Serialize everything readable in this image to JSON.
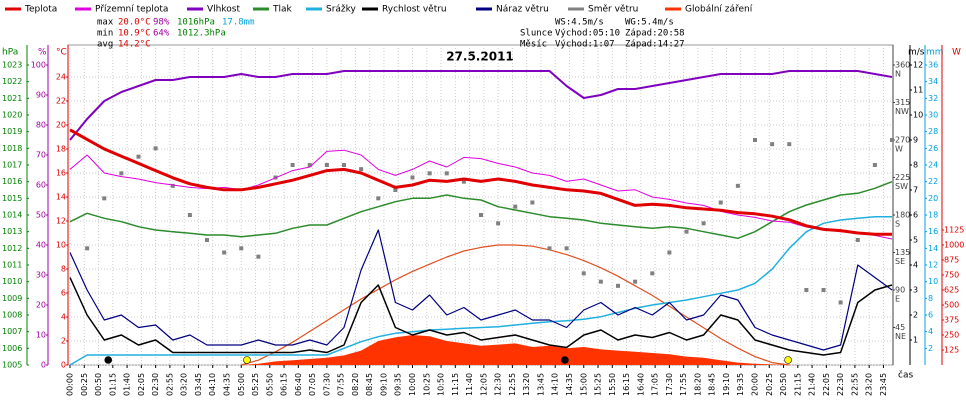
{
  "chart_data": {
    "type": "line",
    "title": "27.5.2011",
    "xlim": [
      0,
      1440
    ],
    "xticks": [
      {
        "value": 0,
        "label": "00:00"
      },
      {
        "value": 25,
        "label": "00:25"
      },
      {
        "value": 50,
        "label": "00:50"
      },
      {
        "value": 75,
        "label": "01:15"
      },
      {
        "value": 100,
        "label": "01:40"
      },
      {
        "value": 125,
        "label": "02:05"
      },
      {
        "value": 150,
        "label": "02:30"
      },
      {
        "value": 175,
        "label": "02:55"
      },
      {
        "value": 200,
        "label": "03:20"
      },
      {
        "value": 225,
        "label": "03:45"
      },
      {
        "value": 250,
        "label": "04:10"
      },
      {
        "value": 275,
        "label": "04:35"
      },
      {
        "value": 300,
        "label": "05:00"
      },
      {
        "value": 325,
        "label": "05:25"
      },
      {
        "value": 350,
        "label": "05:50"
      },
      {
        "value": 375,
        "label": "06:15"
      },
      {
        "value": 400,
        "label": "06:40"
      },
      {
        "value": 425,
        "label": "07:05"
      },
      {
        "value": 450,
        "label": "07:30"
      },
      {
        "value": 475,
        "label": "07:55"
      },
      {
        "value": 500,
        "label": "08:20"
      },
      {
        "value": 525,
        "label": "08:45"
      },
      {
        "value": 550,
        "label": "09:10"
      },
      {
        "value": 575,
        "label": "09:35"
      },
      {
        "value": 600,
        "label": "10:00"
      },
      {
        "value": 625,
        "label": "10:25"
      },
      {
        "value": 650,
        "label": "10:50"
      },
      {
        "value": 675,
        "label": "11:15"
      },
      {
        "value": 700,
        "label": "11:40"
      },
      {
        "value": 725,
        "label": "12:05"
      },
      {
        "value": 750,
        "label": "12:30"
      },
      {
        "value": 775,
        "label": "12:55"
      },
      {
        "value": 800,
        "label": "13:20"
      },
      {
        "value": 825,
        "label": "13:45"
      },
      {
        "value": 850,
        "label": "14:10"
      },
      {
        "value": 875,
        "label": "14:35"
      },
      {
        "value": 900,
        "label": "15:00"
      },
      {
        "value": 925,
        "label": "15:25"
      },
      {
        "value": 950,
        "label": "15:50"
      },
      {
        "value": 975,
        "label": "16:15"
      },
      {
        "value": 1000,
        "label": "16:40"
      },
      {
        "value": 1025,
        "label": "17:05"
      },
      {
        "value": 1050,
        "label": "17:30"
      },
      {
        "value": 1075,
        "label": "17:55"
      },
      {
        "value": 1100,
        "label": "18:20"
      },
      {
        "value": 1125,
        "label": "18:45"
      },
      {
        "value": 1150,
        "label": "19:10"
      },
      {
        "value": 1175,
        "label": "19:35"
      },
      {
        "value": 1200,
        "label": "20:00"
      },
      {
        "value": 1225,
        "label": "20:25"
      },
      {
        "value": 1250,
        "label": "20:50"
      },
      {
        "value": 1275,
        "label": "21:15"
      },
      {
        "value": 1300,
        "label": "21:40"
      },
      {
        "value": 1325,
        "label": "22:05"
      },
      {
        "value": 1350,
        "label": "22:30"
      },
      {
        "value": 1375,
        "label": "22:55"
      },
      {
        "value": 1400,
        "label": "23:20"
      },
      {
        "value": 1425,
        "label": "23:45"
      }
    ],
    "x_label": "čas",
    "grid": true,
    "axes": {
      "pressure": {
        "label": "hPa",
        "color": "#008000",
        "ylim": [
          1005,
          1023
        ],
        "yticks": [
          1005,
          1006,
          1007,
          1008,
          1009,
          1010,
          1011,
          1012,
          1013,
          1014,
          1015,
          1016,
          1017,
          1018,
          1019,
          1020,
          1021,
          1022,
          1023
        ]
      },
      "humidity": {
        "label": "%",
        "color": "#a000a0",
        "ylim": [
          0,
          100
        ],
        "yticks": [
          0,
          10,
          20,
          30,
          40,
          50,
          60,
          70,
          80,
          90,
          100
        ]
      },
      "temp": {
        "label": "°C",
        "color": "#e00000",
        "ylim": [
          0,
          25
        ],
        "yticks": [
          0,
          2,
          4,
          6,
          8,
          10,
          12,
          14,
          16,
          18,
          20,
          22,
          24
        ]
      },
      "dir": {
        "color": "#404040",
        "ylim": [
          0,
          360
        ],
        "yticks": [
          45,
          90,
          135,
          180,
          225,
          270,
          315,
          360
        ],
        "names": [
          "NE",
          "E",
          "SE",
          "S",
          "SW",
          "W",
          "NW",
          "N"
        ]
      },
      "wind": {
        "label": "m/s",
        "color": "#000000",
        "ylim": [
          0,
          12
        ],
        "yticks": [
          1,
          2,
          3,
          4,
          5,
          6,
          7,
          8,
          9,
          10,
          11,
          12
        ]
      },
      "rain": {
        "label": "mm",
        "color": "#00a0e0",
        "ylim": [
          0,
          36
        ],
        "yticks": [
          2,
          4,
          6,
          8,
          10,
          12,
          14,
          16,
          18,
          20,
          22,
          24,
          26,
          28,
          30,
          32,
          34,
          36
        ]
      },
      "rad": {
        "label": "W",
        "color": "#e00000",
        "ylim": [
          0,
          2500
        ],
        "yticks": [
          125,
          250,
          375,
          500,
          625,
          750,
          875,
          1000,
          1125
        ]
      }
    },
    "x": [
      0,
      30,
      60,
      90,
      120,
      150,
      180,
      210,
      240,
      270,
      300,
      330,
      360,
      390,
      420,
      450,
      480,
      510,
      540,
      570,
      600,
      630,
      660,
      690,
      720,
      750,
      780,
      810,
      840,
      870,
      900,
      930,
      960,
      990,
      1020,
      1050,
      1080,
      1110,
      1140,
      1170,
      1200,
      1230,
      1260,
      1290,
      1320,
      1350,
      1380,
      1410,
      1440
    ],
    "series": [
      {
        "name": "Teplota",
        "type": "line",
        "axis": "temp",
        "color": "#e00000",
        "width": 3,
        "values": [
          19.6,
          18.8,
          18.0,
          17.4,
          16.8,
          16.2,
          15.6,
          15.1,
          14.8,
          14.6,
          14.6,
          14.8,
          15.1,
          15.4,
          15.8,
          16.2,
          16.3,
          16.0,
          15.4,
          14.8,
          15.0,
          15.4,
          15.3,
          15.5,
          15.3,
          15.5,
          15.3,
          15.0,
          14.8,
          14.6,
          14.5,
          14.3,
          13.8,
          13.3,
          13.4,
          13.3,
          13.1,
          13.0,
          12.9,
          12.7,
          12.6,
          12.4,
          12.1,
          11.6,
          11.3,
          11.2,
          11.0,
          10.9,
          10.9
        ]
      },
      {
        "name": "Přízemní teplota",
        "type": "line",
        "axis": "temp",
        "color": "#e000e0",
        "width": 1,
        "values": [
          16.3,
          17.5,
          16.0,
          15.7,
          15.5,
          15.2,
          15.0,
          14.8,
          14.7,
          14.8,
          14.6,
          15.0,
          15.6,
          16.2,
          16.5,
          17.8,
          17.9,
          17.5,
          16.3,
          15.8,
          16.3,
          17.0,
          16.5,
          17.3,
          17.2,
          16.8,
          16.5,
          16.0,
          15.8,
          15.3,
          15.5,
          15.0,
          14.5,
          14.6,
          14.0,
          13.8,
          13.5,
          13.3,
          12.8,
          12.5,
          12.3,
          12.0,
          11.9,
          11.5,
          11.3,
          11.1,
          11.0,
          10.8,
          10.5
        ]
      },
      {
        "name": "Vlhkost",
        "type": "line",
        "axis": "humidity",
        "color": "#8000c0",
        "width": 2,
        "values": [
          75,
          82,
          88,
          91,
          93,
          95,
          95,
          96,
          96,
          96,
          97,
          96,
          96,
          97,
          97,
          97,
          98,
          98,
          98,
          98,
          98,
          98,
          98,
          98,
          98,
          98,
          98,
          98,
          98,
          93,
          89,
          90,
          92,
          92,
          93,
          94,
          95,
          96,
          97,
          97,
          97,
          97,
          98,
          98,
          98,
          98,
          98,
          97,
          96
        ]
      },
      {
        "name": "Tlak",
        "type": "line",
        "axis": "pressure",
        "color": "#2c8c2c",
        "width": 1.5,
        "values": [
          1013.6,
          1014.1,
          1013.8,
          1013.6,
          1013.3,
          1013.1,
          1013.0,
          1012.9,
          1012.8,
          1012.8,
          1012.7,
          1012.8,
          1012.9,
          1013.2,
          1013.4,
          1013.4,
          1013.8,
          1014.2,
          1014.5,
          1014.8,
          1015.0,
          1015.0,
          1015.2,
          1015.0,
          1014.9,
          1014.5,
          1014.3,
          1014.1,
          1013.9,
          1013.8,
          1013.7,
          1013.5,
          1013.4,
          1013.3,
          1013.2,
          1013.3,
          1013.2,
          1013.0,
          1012.8,
          1012.6,
          1013.0,
          1013.6,
          1014.2,
          1014.6,
          1014.9,
          1015.2,
          1015.3,
          1015.6,
          1016.0
        ]
      },
      {
        "name": "Srážky",
        "type": "line",
        "axis": "rain",
        "color": "#20b0e0",
        "width": 1.5,
        "values": [
          0,
          1.2,
          1.2,
          1.2,
          1.2,
          1.2,
          1.2,
          1.2,
          1.2,
          1.2,
          1.2,
          1.2,
          1.2,
          1.2,
          1.2,
          1.2,
          2.0,
          2.8,
          3.4,
          3.8,
          4.0,
          4.2,
          4.3,
          4.4,
          4.5,
          4.6,
          4.8,
          5.0,
          5.2,
          5.3,
          5.5,
          5.8,
          6.3,
          6.8,
          7.2,
          7.5,
          7.8,
          8.2,
          8.6,
          9.0,
          9.8,
          11.5,
          14.0,
          16.0,
          17.0,
          17.4,
          17.6,
          17.8,
          17.8
        ]
      },
      {
        "name": "Rychlost větru",
        "type": "line",
        "axis": "wind",
        "color": "#000000",
        "width": 1.5,
        "values": [
          3.5,
          2.0,
          1.0,
          1.2,
          0.8,
          1.0,
          0.5,
          0.5,
          0.5,
          0.5,
          0.5,
          0.5,
          0.5,
          0.5,
          0.6,
          0.5,
          0.8,
          2.5,
          3.2,
          1.5,
          1.2,
          1.4,
          1.2,
          1.3,
          1.0,
          1.1,
          1.2,
          1.0,
          0.8,
          0.7,
          1.2,
          1.4,
          1.0,
          1.2,
          1.1,
          1.3,
          1.0,
          1.2,
          2.0,
          1.8,
          1.0,
          0.8,
          0.6,
          0.5,
          0.4,
          0.5,
          2.5,
          3.0,
          3.2
        ]
      },
      {
        "name": "Náraz větru",
        "type": "line",
        "axis": "wind",
        "color": "#000080",
        "width": 1.2,
        "values": [
          4.5,
          3.0,
          1.8,
          2.0,
          1.5,
          1.6,
          1.0,
          1.2,
          0.8,
          0.8,
          0.8,
          1.0,
          0.8,
          0.8,
          1.0,
          0.8,
          1.5,
          3.8,
          5.4,
          2.5,
          2.2,
          2.8,
          2.0,
          2.3,
          1.8,
          2.0,
          2.2,
          1.8,
          1.8,
          1.5,
          2.2,
          2.5,
          2.0,
          2.3,
          2.0,
          2.5,
          1.8,
          2.0,
          2.8,
          2.6,
          1.5,
          1.2,
          1.0,
          0.8,
          0.6,
          0.8,
          4.0,
          3.5,
          3.0
        ]
      },
      {
        "name": "Směr větru",
        "type": "scatter",
        "axis": "dir",
        "color": "#808080",
        "x": [
          30,
          60,
          90,
          120,
          150,
          180,
          210,
          240,
          270,
          300,
          330,
          360,
          390,
          420,
          450,
          480,
          510,
          540,
          570,
          600,
          630,
          660,
          690,
          720,
          750,
          780,
          810,
          840,
          870,
          900,
          930,
          960,
          990,
          1020,
          1050,
          1080,
          1110,
          1140,
          1170,
          1200,
          1230,
          1260,
          1290,
          1320,
          1350,
          1380,
          1410,
          1440
        ],
        "values": [
          140,
          200,
          230,
          250,
          260,
          215,
          180,
          150,
          135,
          140,
          130,
          225,
          240,
          240,
          240,
          240,
          235,
          200,
          210,
          225,
          230,
          230,
          220,
          180,
          170,
          190,
          195,
          140,
          140,
          110,
          100,
          95,
          100,
          110,
          135,
          160,
          170,
          195,
          215,
          270,
          265,
          265,
          90,
          90,
          75,
          150,
          240,
          270
        ]
      },
      {
        "name": "Globální záření",
        "type": "area",
        "axis": "rad",
        "color": "#ff3300",
        "values": [
          0,
          0,
          0,
          0,
          0,
          0,
          0,
          0,
          0,
          0,
          0,
          10,
          30,
          40,
          50,
          60,
          80,
          120,
          200,
          230,
          250,
          240,
          200,
          180,
          160,
          170,
          180,
          150,
          160,
          140,
          150,
          130,
          120,
          110,
          100,
          90,
          70,
          60,
          40,
          20,
          10,
          5,
          0,
          0,
          0,
          0,
          0,
          0,
          0
        ]
      },
      {
        "type": "line",
        "axis": "rad",
        "color": "#e05020",
        "width": 1.2,
        "x": [
          300,
          330,
          360,
          390,
          420,
          450,
          480,
          510,
          540,
          570,
          600,
          630,
          660,
          690,
          720,
          750,
          780,
          810,
          840,
          870,
          900,
          930,
          960,
          990,
          1020,
          1050,
          1080,
          1110,
          1140,
          1170,
          1200,
          1230,
          1260
        ],
        "values": [
          0,
          40,
          110,
          190,
          280,
          370,
          460,
          550,
          630,
          710,
          780,
          840,
          900,
          950,
          980,
          1000,
          1000,
          990,
          960,
          920,
          870,
          810,
          740,
          660,
          580,
          490,
          400,
          310,
          220,
          140,
          70,
          20,
          0
        ]
      }
    ],
    "events": [
      {
        "x": 67,
        "color": "#000000"
      },
      {
        "x": 310,
        "color": "#ffff00"
      },
      {
        "x": 867,
        "color": "#000000"
      },
      {
        "x": 1258,
        "color": "#ffff00"
      }
    ],
    "stats": [
      [
        {
          "text": "max",
          "color": "#000000"
        },
        {
          "text": "20.0°C",
          "color": "#e00000"
        },
        {
          "text": "98%",
          "color": "#a000a0"
        },
        {
          "text": "1016hPa",
          "color": "#008000"
        },
        {
          "text": "17.8mm",
          "color": "#00a0e0"
        }
      ],
      [
        {
          "text": "min",
          "color": "#000000"
        },
        {
          "text": "10.9°C",
          "color": "#e00000"
        },
        {
          "text": "64%",
          "color": "#a000a0"
        },
        {
          "text": "1012.3hPa",
          "color": "#008000"
        }
      ],
      [
        {
          "text": "avg",
          "color": "#000000"
        },
        {
          "text": "14.2°C",
          "color": "#e00000"
        }
      ]
    ],
    "info": [
      [
        "WS:4.5m/s",
        "WG:5.4m/s"
      ],
      [
        "Slunce",
        "Východ:05:10",
        "Západ:20:58"
      ],
      [
        "Měsíc",
        "Východ:1:07",
        "Západ:14:27"
      ]
    ]
  }
}
